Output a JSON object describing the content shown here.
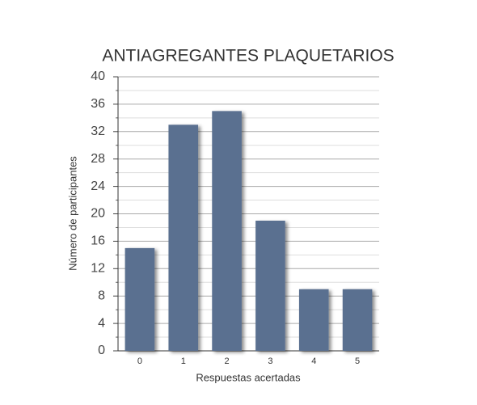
{
  "chart_data": {
    "type": "bar",
    "title": "ANTIAGREGANTES PLAQUETARIOS",
    "x_label": "Respuestas acertadas",
    "y_label": "Número de participantes",
    "categories": [
      "0",
      "1",
      "2",
      "3",
      "4",
      "5"
    ],
    "values": [
      15,
      33,
      35,
      19,
      9,
      9
    ],
    "color": "#5a7090",
    "ylim": [
      0,
      40
    ],
    "yticks": [
      0,
      4,
      8,
      12,
      16,
      20,
      24,
      28,
      32,
      36,
      40
    ],
    "minor_yticks": [
      2,
      6,
      10,
      14,
      18,
      22,
      26,
      30,
      34,
      38
    ],
    "grid": true
  }
}
